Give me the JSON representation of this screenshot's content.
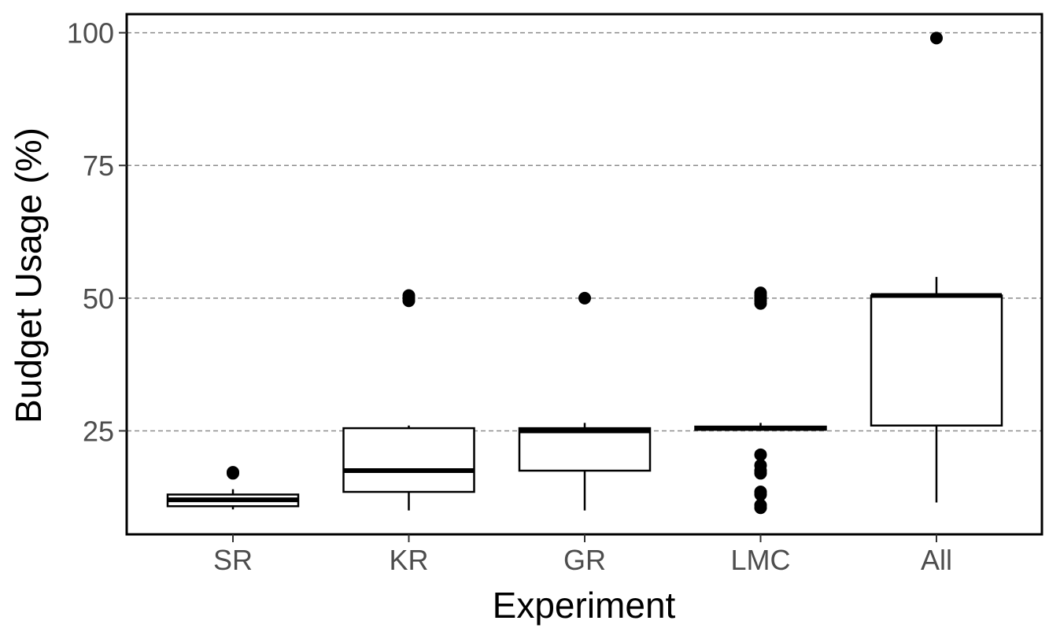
{
  "chart_data": {
    "type": "boxplot",
    "xlabel": "Experiment",
    "ylabel": "Budget Usage (%)",
    "ylim": [
      5.5,
      103.5
    ],
    "yticks": [
      25,
      50,
      75,
      100
    ],
    "ytick_labels": [
      "25",
      "50",
      "75",
      "100"
    ],
    "grid": "horizontal dashed",
    "legend": "none",
    "categories": [
      "SR",
      "KR",
      "GR",
      "LMC",
      "All"
    ],
    "boxes": [
      {
        "category": "SR",
        "whisker_low": 10.2,
        "q1": 10.8,
        "median": 12.0,
        "q3": 13.0,
        "whisker_high": 14.0,
        "outliers": [
          17.0,
          17.2
        ]
      },
      {
        "category": "KR",
        "whisker_low": 10.0,
        "q1": 13.5,
        "median": 17.5,
        "q3": 25.5,
        "whisker_high": 26.0,
        "outliers": [
          49.5,
          50.0,
          50.5
        ]
      },
      {
        "category": "GR",
        "whisker_low": 10.0,
        "q1": 17.5,
        "median": 25.0,
        "q3": 25.5,
        "whisker_high": 26.5,
        "outliers": [
          50.0
        ]
      },
      {
        "category": "LMC",
        "whisker_low": 25.0,
        "q1": 25.2,
        "median": 25.5,
        "q3": 25.8,
        "whisker_high": 26.5,
        "outliers": [
          10.5,
          11.0,
          13.0,
          13.5,
          17.0,
          17.5,
          18.5,
          20.5,
          49.0,
          49.5,
          50.0,
          50.5,
          51.0
        ]
      },
      {
        "category": "All",
        "whisker_low": 11.5,
        "q1": 26.0,
        "median": 50.5,
        "q3": 50.5,
        "whisker_high": 54.0,
        "outliers": [
          99.0
        ]
      }
    ]
  }
}
